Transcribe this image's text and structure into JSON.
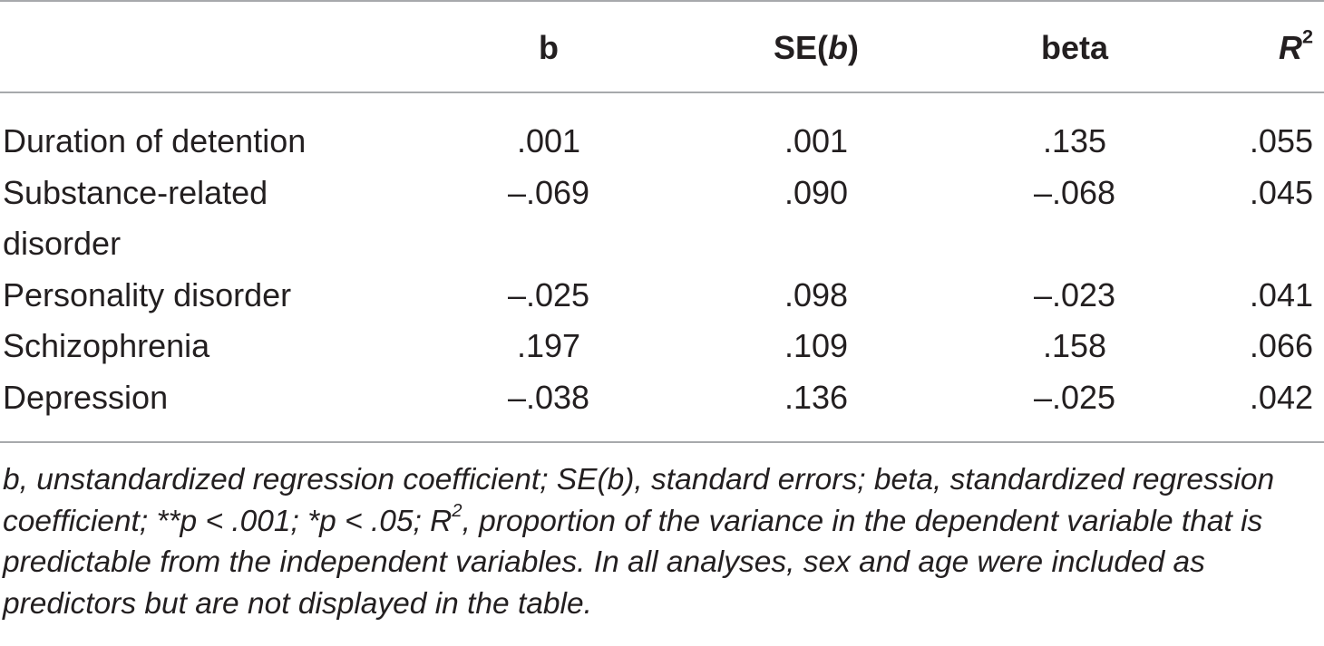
{
  "table": {
    "headers": {
      "label": "",
      "b": "b",
      "se_prefix": "SE(",
      "se_italic": "b",
      "se_suffix": ")",
      "beta": "beta",
      "r2_base": "R",
      "r2_sup": "2"
    },
    "rows": [
      {
        "label": "Duration of detention",
        "b": ".001",
        "se": ".001",
        "beta": ".135",
        "r2": ".055"
      },
      {
        "label": "Substance-related disorder",
        "b": "–.069",
        "se": ".090",
        "beta": "–.068",
        "r2": ".045"
      },
      {
        "label": "Personality disorder",
        "b": "–.025",
        "se": ".098",
        "beta": "–.023",
        "r2": ".041"
      },
      {
        "label": "Schizophrenia",
        "b": ".197",
        "se": ".109",
        "beta": ".158",
        "r2": ".066"
      },
      {
        "label": "Depression",
        "b": "–.038",
        "se": ".136",
        "beta": "–.025",
        "r2": ".042"
      }
    ]
  },
  "footnote": {
    "part1": "b, unstandardized regression coefficient; SE(b), standard errors; beta, standardized regression coefficient; **p < .001; *p < .05; R",
    "sup": "2",
    "part2": ", proportion of the variance in the dependent variable that is predictable from the independent variables. In all analyses, sex and age were included as predictors but are not displayed in the table."
  }
}
